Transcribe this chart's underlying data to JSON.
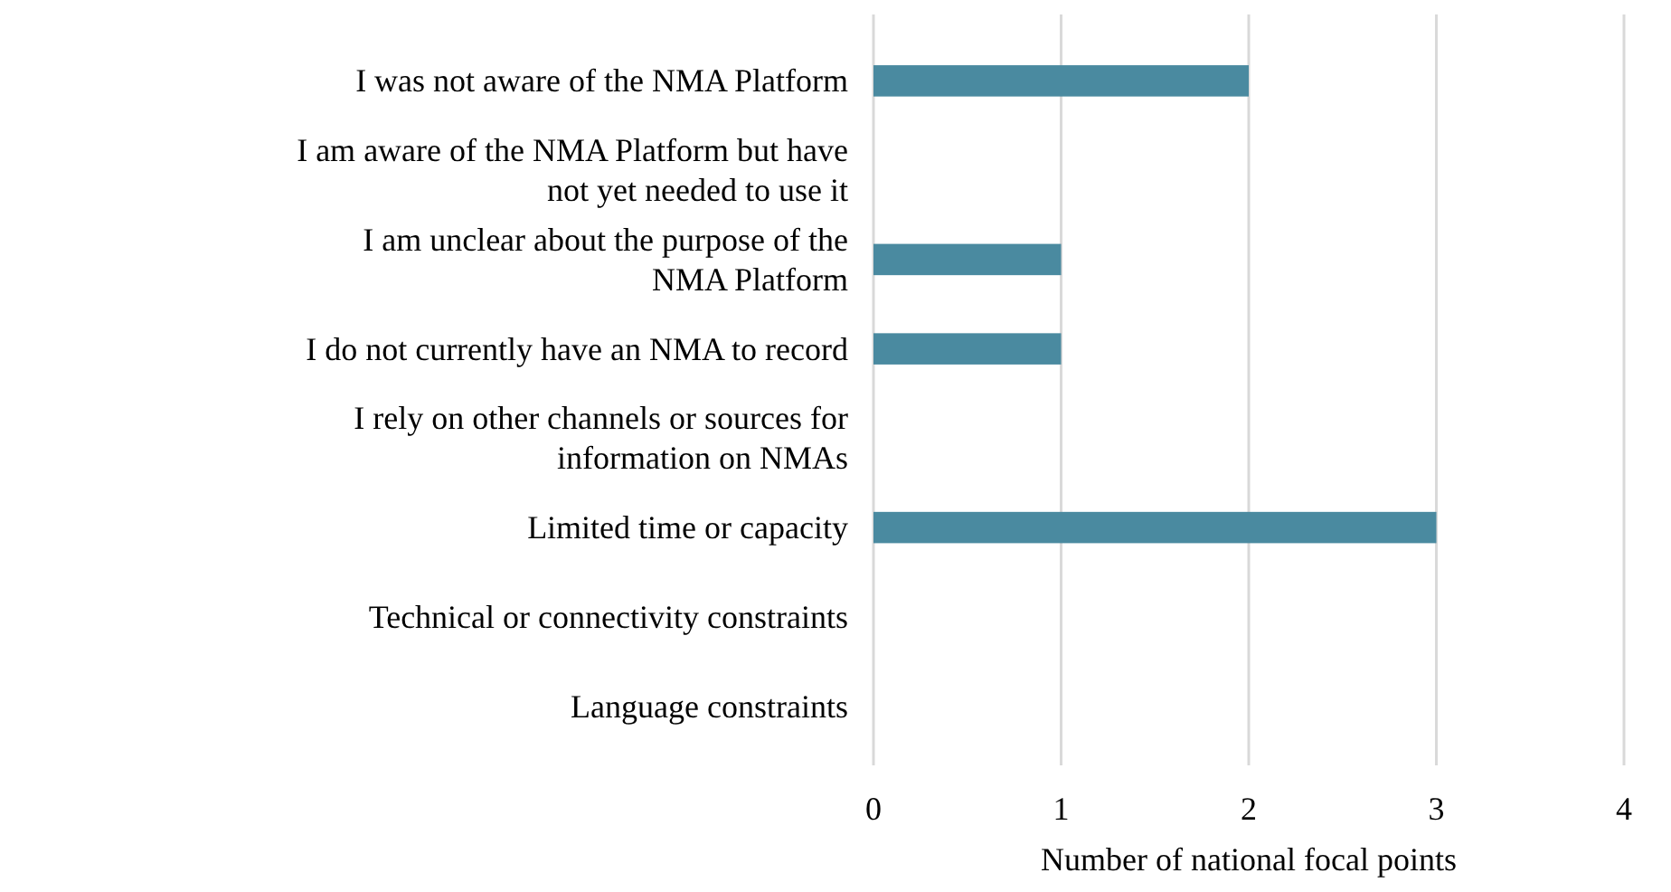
{
  "chart_data": {
    "type": "bar",
    "orientation": "horizontal",
    "xlabel": "Number of national focal points",
    "categories": [
      "I was not aware of the NMA Platform",
      "I am aware of the NMA Platform but have not yet needed to use it",
      "I am unclear about the purpose of the NMA Platform",
      "I do not currently have an NMA to record",
      "I rely on other channels or sources for information on NMAs",
      "Limited time or capacity",
      "Technical or connectivity constraints",
      "Language constraints"
    ],
    "values": [
      2,
      0,
      1,
      1,
      0,
      3,
      0,
      0
    ],
    "color": "#4a8aa0",
    "xlim": [
      0,
      4
    ],
    "xticks": [
      0,
      1,
      2,
      3,
      4
    ],
    "grid": "x"
  }
}
